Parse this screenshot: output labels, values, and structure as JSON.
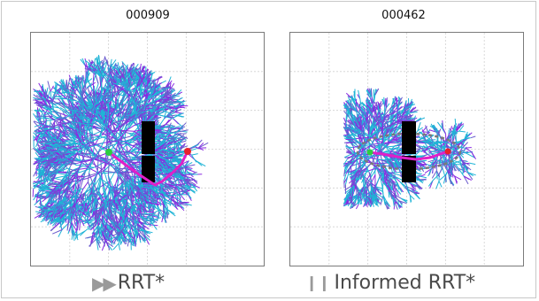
{
  "panels": [
    {
      "id": "left",
      "title": "000909",
      "caption": "RRT*",
      "status_glyph": "▶▶",
      "status_icon": "fast-forward-icon"
    },
    {
      "id": "right",
      "title": "000462",
      "caption": "Informed RRT*",
      "status_glyph": "❙❙",
      "status_icon": "pause-icon"
    }
  ],
  "colors": {
    "tree_a": "#1fb4d6",
    "tree_b": "#6a5acd",
    "tree_c": "#8a2be2",
    "path": "#e020c8",
    "start": "#2ecc40",
    "goal": "#e8202a",
    "obstacle": "#000000",
    "grid": "#d0d0d0",
    "ellipse": "#7a7a7a"
  }
}
